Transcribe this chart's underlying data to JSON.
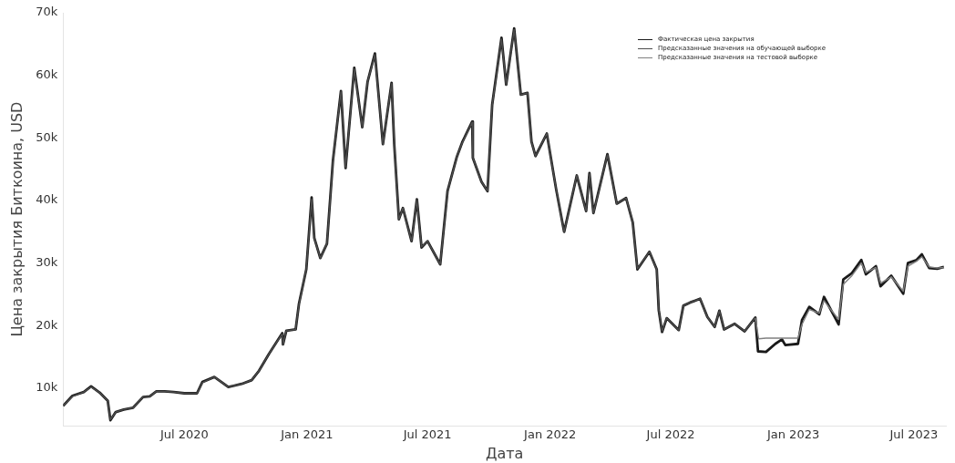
{
  "chart_data": {
    "type": "line",
    "xlabel": "Дата",
    "ylabel": "Цена закрытия Биткоина, USD",
    "grid": false,
    "legend": "top right",
    "marker": "none",
    "line_style": "solid",
    "xlim": [
      "2020-01-01",
      "2023-08-18"
    ],
    "ylim": [
      4000,
      70000
    ],
    "xticks": [
      {
        "value": "2020-07-01",
        "label": "Jul 2020"
      },
      {
        "value": "2021-01-01",
        "label": "Jan 2021"
      },
      {
        "value": "2021-07-01",
        "label": "Jul 2021"
      },
      {
        "value": "2022-01-01",
        "label": "Jan 2022"
      },
      {
        "value": "2022-07-01",
        "label": "Jul 2022"
      },
      {
        "value": "2023-01-01",
        "label": "Jan 2023"
      },
      {
        "value": "2023-07-01",
        "label": "Jul 2023"
      }
    ],
    "yticks": [
      {
        "value": 10000,
        "label": "10k"
      },
      {
        "value": 20000,
        "label": "20k"
      },
      {
        "value": 30000,
        "label": "30k"
      },
      {
        "value": 40000,
        "label": "40k"
      },
      {
        "value": 50000,
        "label": "50k"
      },
      {
        "value": 60000,
        "label": "60k"
      },
      {
        "value": 70000,
        "label": "70k"
      }
    ],
    "series": [
      {
        "name": "Фактическая цена закрытия",
        "color": "#1a1a1a",
        "x": [
          "2020-01-01",
          "2020-01-15",
          "2020-02-01",
          "2020-02-12",
          "2020-02-25",
          "2020-03-08",
          "2020-03-12",
          "2020-03-20",
          "2020-04-01",
          "2020-04-15",
          "2020-04-30",
          "2020-05-10",
          "2020-05-20",
          "2020-06-01",
          "2020-06-15",
          "2020-07-01",
          "2020-07-20",
          "2020-07-28",
          "2020-08-15",
          "2020-09-05",
          "2020-09-25",
          "2020-10-10",
          "2020-10-21",
          "2020-11-05",
          "2020-11-25",
          "2020-11-26",
          "2020-12-01",
          "2020-12-15",
          "2020-12-20",
          "2020-12-31",
          "2021-01-08",
          "2021-01-12",
          "2021-01-21",
          "2021-01-31",
          "2021-02-09",
          "2021-02-21",
          "2021-02-28",
          "2021-03-13",
          "2021-03-25",
          "2021-04-02",
          "2021-04-13",
          "2021-04-25",
          "2021-05-08",
          "2021-05-12",
          "2021-05-19",
          "2021-05-25",
          "2021-06-07",
          "2021-06-15",
          "2021-06-22",
          "2021-07-01",
          "2021-07-20",
          "2021-07-31",
          "2021-08-14",
          "2021-08-22",
          "2021-09-06",
          "2021-09-07",
          "2021-09-20",
          "2021-09-29",
          "2021-10-06",
          "2021-10-20",
          "2021-10-27",
          "2021-11-08",
          "2021-11-18",
          "2021-11-28",
          "2021-12-04",
          "2021-12-10",
          "2021-12-27",
          "2022-01-10",
          "2022-01-22",
          "2022-02-10",
          "2022-02-24",
          "2022-03-01",
          "2022-03-07",
          "2022-03-28",
          "2022-04-11",
          "2022-04-25",
          "2022-05-05",
          "2022-05-12",
          "2022-05-30",
          "2022-06-10",
          "2022-06-13",
          "2022-06-18",
          "2022-06-25",
          "2022-07-13",
          "2022-07-20",
          "2022-07-30",
          "2022-08-14",
          "2022-08-25",
          "2022-09-05",
          "2022-09-12",
          "2022-09-19",
          "2022-10-05",
          "2022-10-20",
          "2022-11-05",
          "2022-11-09",
          "2022-11-21",
          "2022-12-05",
          "2022-12-15",
          "2022-12-20",
          "2023-01-08",
          "2023-01-14",
          "2023-01-25",
          "2023-02-09",
          "2023-02-16",
          "2023-03-10",
          "2023-03-17",
          "2023-03-30",
          "2023-04-13",
          "2023-04-20",
          "2023-05-05",
          "2023-05-12",
          "2023-05-28",
          "2023-06-15",
          "2023-06-22",
          "2023-07-05",
          "2023-07-13",
          "2023-07-24",
          "2023-08-05",
          "2023-08-15"
        ],
        "values": [
          7200,
          8800,
          9400,
          10300,
          9300,
          8000,
          4900,
          6200,
          6600,
          6900,
          8600,
          8700,
          9500,
          9500,
          9400,
          9200,
          9200,
          11000,
          11800,
          10200,
          10700,
          11300,
          12800,
          15500,
          18800,
          17000,
          19200,
          19400,
          23500,
          29000,
          40500,
          34000,
          30800,
          33100,
          46400,
          57500,
          45200,
          61200,
          51700,
          59000,
          63500,
          49000,
          58800,
          49000,
          37000,
          38800,
          33500,
          40200,
          32500,
          33500,
          29800,
          41500,
          47000,
          49300,
          52600,
          46800,
          43000,
          41500,
          55300,
          66000,
          58500,
          67500,
          56900,
          57200,
          49400,
          47100,
          50700,
          41800,
          35000,
          44000,
          38300,
          44400,
          38000,
          47400,
          39500,
          40400,
          36500,
          29000,
          31800,
          29000,
          22500,
          19000,
          21200,
          19300,
          23200,
          23700,
          24300,
          21400,
          19800,
          22400,
          19400,
          20300,
          19100,
          21300,
          15900,
          15800,
          17100,
          17800,
          16900,
          17100,
          20900,
          23000,
          21800,
          24600,
          20200,
          27400,
          28400,
          30500,
          28200,
          29500,
          26300,
          28000,
          25100,
          30000,
          30500,
          31400,
          29200,
          29100,
          29400
        ]
      },
      {
        "name": "Предсказанные значения на обучающей выборке",
        "color": "#4d4d4d",
        "x": [
          "2020-01-01",
          "2020-01-15",
          "2020-02-01",
          "2020-02-12",
          "2020-02-25",
          "2020-03-08",
          "2020-03-12",
          "2020-03-20",
          "2020-04-01",
          "2020-04-15",
          "2020-04-30",
          "2020-05-10",
          "2020-05-20",
          "2020-06-01",
          "2020-06-15",
          "2020-07-01",
          "2020-07-20",
          "2020-07-28",
          "2020-08-15",
          "2020-09-05",
          "2020-09-25",
          "2020-10-10",
          "2020-10-21",
          "2020-11-05",
          "2020-11-25",
          "2020-11-26",
          "2020-12-01",
          "2020-12-15",
          "2020-12-20",
          "2020-12-31",
          "2021-01-08",
          "2021-01-12",
          "2021-01-21",
          "2021-01-31",
          "2021-02-09",
          "2021-02-21",
          "2021-02-28",
          "2021-03-13",
          "2021-03-25",
          "2021-04-02",
          "2021-04-13",
          "2021-04-25",
          "2021-05-08",
          "2021-05-12",
          "2021-05-19",
          "2021-05-25",
          "2021-06-07",
          "2021-06-15",
          "2021-06-22",
          "2021-07-01",
          "2021-07-20",
          "2021-07-31",
          "2021-08-14",
          "2021-08-22",
          "2021-09-06",
          "2021-09-07",
          "2021-09-20",
          "2021-09-29",
          "2021-10-06",
          "2021-10-20",
          "2021-10-27",
          "2021-11-08",
          "2021-11-18",
          "2021-11-28",
          "2021-12-04",
          "2021-12-10",
          "2021-12-27",
          "2022-01-10",
          "2022-01-22",
          "2022-02-10",
          "2022-02-24",
          "2022-03-01",
          "2022-03-07",
          "2022-03-28",
          "2022-04-11",
          "2022-04-25",
          "2022-05-05",
          "2022-05-12",
          "2022-05-30",
          "2022-06-10",
          "2022-06-13",
          "2022-06-18",
          "2022-06-25",
          "2022-07-13",
          "2022-07-20",
          "2022-07-30",
          "2022-08-14",
          "2022-08-25",
          "2022-09-05",
          "2022-09-12",
          "2022-09-19",
          "2022-10-05",
          "2022-10-20",
          "2022-11-05"
        ],
        "values": [
          7200,
          8700,
          9400,
          10200,
          9300,
          8000,
          5000,
          6200,
          6600,
          6900,
          8600,
          8700,
          9500,
          9500,
          9400,
          9200,
          9200,
          10900,
          11800,
          10200,
          10700,
          11300,
          12800,
          15500,
          18700,
          17000,
          19200,
          19400,
          23400,
          29000,
          40200,
          34000,
          30800,
          33100,
          46200,
          57400,
          45300,
          61000,
          51700,
          59000,
          63300,
          49000,
          58700,
          49100,
          37000,
          38800,
          33500,
          40100,
          32600,
          33500,
          29800,
          41400,
          47000,
          49200,
          52500,
          46800,
          43000,
          41500,
          55200,
          65800,
          58500,
          67300,
          56900,
          57200,
          49400,
          47100,
          50700,
          41800,
          35000,
          44000,
          38300,
          44300,
          38000,
          47300,
          39500,
          40400,
          36500,
          29100,
          31800,
          29000,
          22500,
          19100,
          21200,
          19300,
          23200,
          23700,
          24300,
          21400,
          19800,
          22400,
          19400,
          20300,
          19100,
          21300
        ]
      },
      {
        "name": "Предсказанные значения на тестовой выборке",
        "color": "#808080",
        "x": [
          "2022-11-05",
          "2022-11-10",
          "2022-11-21",
          "2022-12-05",
          "2022-12-20",
          "2023-01-08",
          "2023-01-14",
          "2023-01-25",
          "2023-02-09",
          "2023-02-16",
          "2023-03-10",
          "2023-03-17",
          "2023-03-30",
          "2023-04-13",
          "2023-04-20",
          "2023-05-05",
          "2023-05-12",
          "2023-05-28",
          "2023-06-15",
          "2023-06-22",
          "2023-07-05",
          "2023-07-13",
          "2023-07-24",
          "2023-08-05",
          "2023-08-15"
        ],
        "values": [
          21200,
          17900,
          18000,
          18000,
          18000,
          18000,
          20200,
          22600,
          22000,
          24000,
          21000,
          26600,
          28000,
          30000,
          28500,
          29300,
          26800,
          27800,
          25500,
          29500,
          30300,
          31000,
          29400,
          29200,
          29300
        ]
      }
    ]
  }
}
